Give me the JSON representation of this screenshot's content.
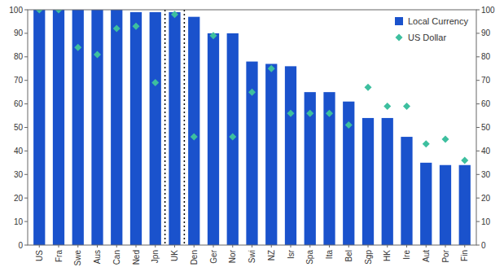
{
  "chart_data": {
    "type": "bar",
    "categories": [
      "US",
      "Fra",
      "Swe",
      "Aus",
      "Can",
      "Ned",
      "Jpn",
      "UK",
      "Den",
      "Ger",
      "Nor",
      "Swi",
      "NZ",
      "Isr",
      "Spa",
      "Ita",
      "Bel",
      "Sgp",
      "HK",
      "Ire",
      "Aut",
      "Por",
      "Fin"
    ],
    "series": [
      {
        "name": "Local Currency",
        "type": "bar",
        "color": "#1a52cc",
        "values": [
          100,
          100,
          100,
          100,
          100,
          99,
          99,
          99,
          97,
          90,
          90,
          78,
          77,
          76,
          65,
          65,
          61,
          54,
          54,
          46,
          35,
          34,
          34
        ]
      },
      {
        "name": "US Dollar",
        "type": "scatter",
        "marker": "diamond",
        "color": "#3dbf9f",
        "values": [
          100,
          100,
          84,
          81,
          92,
          93,
          69,
          98,
          46,
          89,
          46,
          65,
          75,
          56,
          56,
          56,
          51,
          67,
          59,
          59,
          43,
          45,
          36
        ]
      }
    ],
    "highlight": "UK",
    "ylim": [
      0,
      100
    ],
    "yticks": [
      0,
      10,
      20,
      30,
      40,
      50,
      60,
      70,
      80,
      90,
      100
    ],
    "y2lim": [
      0,
      100
    ],
    "y2ticks": [
      0,
      10,
      20,
      30,
      40,
      50,
      60,
      70,
      80,
      90,
      100
    ],
    "grid": false,
    "legend": "upper right"
  }
}
